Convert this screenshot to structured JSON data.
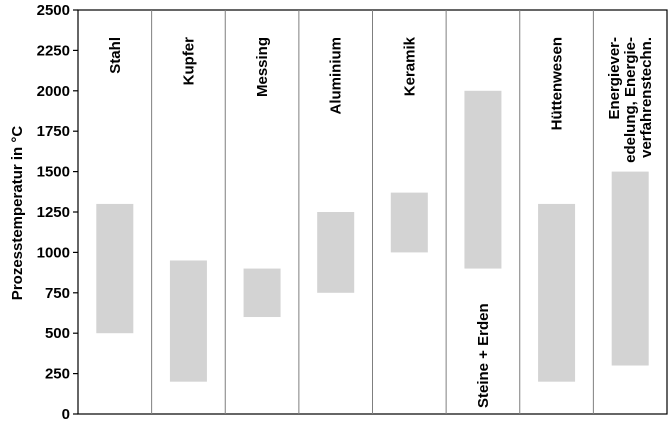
{
  "chart_data": {
    "type": "range-bar",
    "title": "",
    "xlabel": "",
    "ylabel": "Prozesstemperatur in °C",
    "ylim": [
      0,
      2500
    ],
    "yticks": [
      0,
      250,
      500,
      750,
      1000,
      1250,
      1500,
      1750,
      2000,
      2250,
      2500
    ],
    "grid": false,
    "legend": "none",
    "bar_color": "#d3d3d3",
    "categories": [
      {
        "label_lines": [
          "Stahl"
        ],
        "label_position": "top",
        "min": 500,
        "max": 1300
      },
      {
        "label_lines": [
          "Kupfer"
        ],
        "label_position": "top",
        "min": 200,
        "max": 950
      },
      {
        "label_lines": [
          "Messing"
        ],
        "label_position": "top",
        "min": 600,
        "max": 900
      },
      {
        "label_lines": [
          "Aluminium"
        ],
        "label_position": "top",
        "min": 750,
        "max": 1250
      },
      {
        "label_lines": [
          "Keramik"
        ],
        "label_position": "top",
        "min": 1000,
        "max": 1370
      },
      {
        "label_lines": [
          "Steine + Erden"
        ],
        "label_position": "bottom",
        "min": 900,
        "max": 2000
      },
      {
        "label_lines": [
          "Hüttenwesen"
        ],
        "label_position": "top",
        "min": 200,
        "max": 1300
      },
      {
        "label_lines": [
          "Energiever-",
          "edelung, Energie-",
          "verfahrenstechn."
        ],
        "label_position": "top",
        "min": 300,
        "max": 1500
      }
    ]
  }
}
